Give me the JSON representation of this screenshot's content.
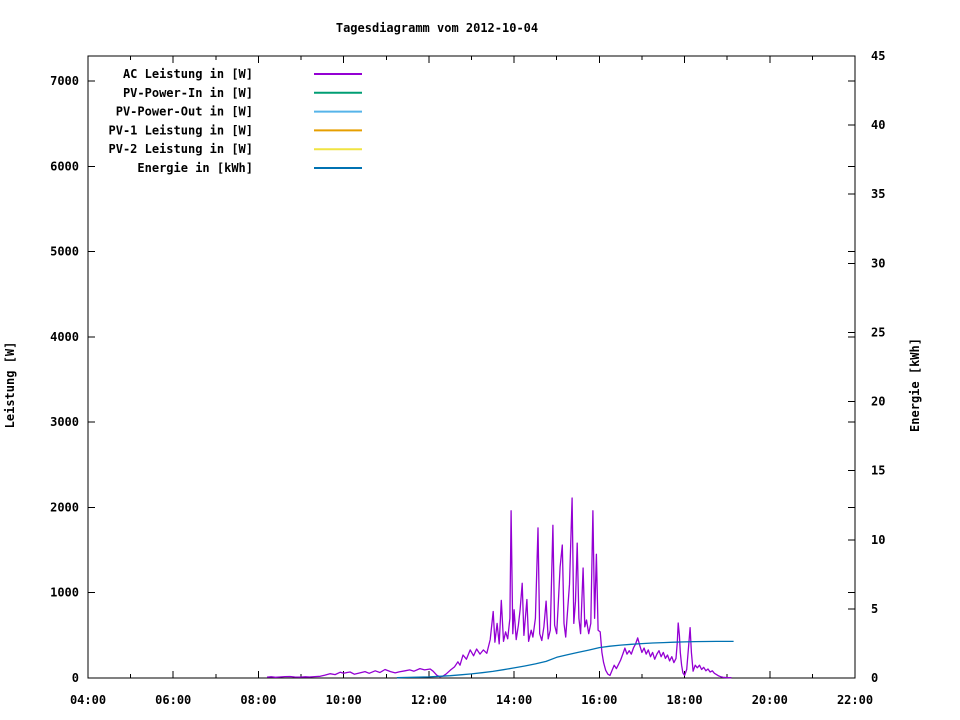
{
  "chart": {
    "title": "Tagesdiagramm vom 2012-10-04",
    "ylabel": "Leistung [W]",
    "y2label": "Energie [kWh]",
    "background_color": "#ffffff",
    "axis_color": "#000000"
  },
  "chart_data": {
    "type": "line",
    "title": "Tagesdiagramm vom 2012-10-04",
    "grid": false,
    "legend_position": "top-left-inside",
    "x_axis": {
      "unit": "time-of-day",
      "range_hours": [
        4,
        22
      ],
      "major_tick_every_hours": 2,
      "minor_tick_every_hours": 1,
      "tick_labels": [
        "04:00",
        "06:00",
        "08:00",
        "10:00",
        "12:00",
        "14:00",
        "16:00",
        "18:00",
        "20:00",
        "22:00"
      ]
    },
    "y_axis": {
      "label": "Leistung [W]",
      "range": [
        0,
        7300
      ],
      "tick_values": [
        0,
        1000,
        2000,
        3000,
        4000,
        5000,
        6000,
        7000
      ]
    },
    "y2_axis": {
      "label": "Energie [kWh]",
      "range": [
        0,
        45
      ],
      "tick_values": [
        0,
        5,
        10,
        15,
        20,
        25,
        30,
        35,
        40,
        45
      ]
    },
    "legend": [
      {
        "label": "AC Leistung in [W]",
        "color": "#9400d3"
      },
      {
        "label": "PV-Power-In in [W]",
        "color": "#009e73"
      },
      {
        "label": "PV-Power-Out in [W]",
        "color": "#56b4e9"
      },
      {
        "label": "PV-1 Leistung in [W]",
        "color": "#e69f00"
      },
      {
        "label": "PV-2 Leistung in [W]",
        "color": "#f0e442"
      },
      {
        "label": "Energie in [kWh]",
        "color": "#0072b2"
      }
    ],
    "series": [
      {
        "name": "AC Leistung in [W]",
        "key": "ac-leistung",
        "color": "#9400d3",
        "axis": "y1",
        "points": [
          [
            8.2,
            10
          ],
          [
            8.3,
            14
          ],
          [
            8.4,
            8
          ],
          [
            8.5,
            12
          ],
          [
            8.62,
            16
          ],
          [
            8.74,
            18
          ],
          [
            8.85,
            12
          ],
          [
            8.98,
            10
          ],
          [
            9.1,
            14
          ],
          [
            9.2,
            12
          ],
          [
            9.32,
            16
          ],
          [
            9.45,
            20
          ],
          [
            9.55,
            32
          ],
          [
            9.68,
            50
          ],
          [
            9.8,
            40
          ],
          [
            9.92,
            68
          ],
          [
            10.0,
            55
          ],
          [
            10.08,
            65
          ],
          [
            10.15,
            70
          ],
          [
            10.25,
            45
          ],
          [
            10.38,
            60
          ],
          [
            10.5,
            75
          ],
          [
            10.6,
            55
          ],
          [
            10.74,
            85
          ],
          [
            10.85,
            65
          ],
          [
            10.97,
            100
          ],
          [
            11.1,
            75
          ],
          [
            11.21,
            60
          ],
          [
            11.3,
            72
          ],
          [
            11.44,
            85
          ],
          [
            11.55,
            95
          ],
          [
            11.65,
            80
          ],
          [
            11.79,
            110
          ],
          [
            11.9,
            95
          ],
          [
            12.03,
            105
          ],
          [
            12.1,
            80
          ],
          [
            12.19,
            30
          ],
          [
            12.26,
            14
          ],
          [
            12.33,
            22
          ],
          [
            12.4,
            45
          ],
          [
            12.5,
            90
          ],
          [
            12.6,
            130
          ],
          [
            12.68,
            190
          ],
          [
            12.73,
            150
          ],
          [
            12.8,
            270
          ],
          [
            12.88,
            220
          ],
          [
            12.97,
            330
          ],
          [
            13.05,
            260
          ],
          [
            13.12,
            340
          ],
          [
            13.2,
            280
          ],
          [
            13.28,
            330
          ],
          [
            13.36,
            290
          ],
          [
            13.44,
            450
          ],
          [
            13.51,
            780
          ],
          [
            13.55,
            420
          ],
          [
            13.6,
            640
          ],
          [
            13.65,
            400
          ],
          [
            13.7,
            910
          ],
          [
            13.75,
            430
          ],
          [
            13.8,
            540
          ],
          [
            13.85,
            460
          ],
          [
            13.9,
            700
          ],
          [
            13.93,
            1960
          ],
          [
            13.97,
            520
          ],
          [
            14.0,
            800
          ],
          [
            14.05,
            450
          ],
          [
            14.1,
            620
          ],
          [
            14.14,
            800
          ],
          [
            14.19,
            1110
          ],
          [
            14.23,
            500
          ],
          [
            14.3,
            920
          ],
          [
            14.34,
            430
          ],
          [
            14.4,
            560
          ],
          [
            14.44,
            480
          ],
          [
            14.5,
            700
          ],
          [
            14.56,
            1760
          ],
          [
            14.6,
            520
          ],
          [
            14.65,
            440
          ],
          [
            14.7,
            600
          ],
          [
            14.75,
            900
          ],
          [
            14.8,
            460
          ],
          [
            14.85,
            560
          ],
          [
            14.91,
            1790
          ],
          [
            14.95,
            620
          ],
          [
            15.0,
            520
          ],
          [
            15.04,
            900
          ],
          [
            15.08,
            1300
          ],
          [
            15.13,
            1560
          ],
          [
            15.17,
            640
          ],
          [
            15.21,
            480
          ],
          [
            15.25,
            760
          ],
          [
            15.3,
            1100
          ],
          [
            15.36,
            2110
          ],
          [
            15.4,
            640
          ],
          [
            15.44,
            900
          ],
          [
            15.48,
            1580
          ],
          [
            15.52,
            700
          ],
          [
            15.56,
            520
          ],
          [
            15.62,
            1290
          ],
          [
            15.66,
            600
          ],
          [
            15.7,
            680
          ],
          [
            15.75,
            520
          ],
          [
            15.8,
            640
          ],
          [
            15.85,
            1960
          ],
          [
            15.89,
            700
          ],
          [
            15.93,
            1450
          ],
          [
            15.97,
            560
          ],
          [
            16.02,
            540
          ],
          [
            16.06,
            300
          ],
          [
            16.1,
            180
          ],
          [
            16.15,
            90
          ],
          [
            16.2,
            45
          ],
          [
            16.25,
            30
          ],
          [
            16.3,
            90
          ],
          [
            16.35,
            150
          ],
          [
            16.4,
            110
          ],
          [
            16.45,
            160
          ],
          [
            16.5,
            210
          ],
          [
            16.55,
            280
          ],
          [
            16.6,
            350
          ],
          [
            16.65,
            280
          ],
          [
            16.7,
            320
          ],
          [
            16.75,
            280
          ],
          [
            16.8,
            350
          ],
          [
            16.85,
            400
          ],
          [
            16.9,
            470
          ],
          [
            16.95,
            380
          ],
          [
            17.0,
            300
          ],
          [
            17.05,
            350
          ],
          [
            17.1,
            280
          ],
          [
            17.15,
            330
          ],
          [
            17.2,
            250
          ],
          [
            17.25,
            300
          ],
          [
            17.3,
            220
          ],
          [
            17.35,
            280
          ],
          [
            17.4,
            320
          ],
          [
            17.45,
            250
          ],
          [
            17.5,
            300
          ],
          [
            17.55,
            230
          ],
          [
            17.6,
            270
          ],
          [
            17.65,
            200
          ],
          [
            17.7,
            250
          ],
          [
            17.75,
            180
          ],
          [
            17.8,
            230
          ],
          [
            17.83,
            420
          ],
          [
            17.85,
            645
          ],
          [
            17.88,
            500
          ],
          [
            17.9,
            300
          ],
          [
            17.93,
            150
          ],
          [
            17.96,
            60
          ],
          [
            18.0,
            30
          ],
          [
            18.05,
            100
          ],
          [
            18.1,
            400
          ],
          [
            18.13,
            590
          ],
          [
            18.16,
            300
          ],
          [
            18.2,
            80
          ],
          [
            18.25,
            150
          ],
          [
            18.3,
            120
          ],
          [
            18.35,
            150
          ],
          [
            18.4,
            100
          ],
          [
            18.45,
            125
          ],
          [
            18.5,
            85
          ],
          [
            18.55,
            105
          ],
          [
            18.6,
            70
          ],
          [
            18.65,
            85
          ],
          [
            18.7,
            55
          ],
          [
            18.75,
            40
          ],
          [
            18.8,
            25
          ],
          [
            18.85,
            15
          ],
          [
            18.9,
            8
          ],
          [
            19.0,
            5
          ],
          [
            19.1,
            3
          ]
        ]
      },
      {
        "name": "PV-Power-In in [W]",
        "key": "pv-power-in",
        "color": "#009e73",
        "axis": "y1",
        "points": []
      },
      {
        "name": "PV-Power-Out in [W]",
        "key": "pv-power-out",
        "color": "#56b4e9",
        "axis": "y1",
        "points": []
      },
      {
        "name": "PV-1 Leistung in [W]",
        "key": "pv-1-leistung",
        "color": "#e69f00",
        "axis": "y1",
        "points": []
      },
      {
        "name": "PV-2 Leistung in [W]",
        "key": "pv-2-leistung",
        "color": "#f0e442",
        "axis": "y1",
        "points": []
      },
      {
        "name": "Energie in [kWh]",
        "key": "energie",
        "color": "#0072b2",
        "axis": "y2",
        "points": [
          [
            11.25,
            0.02
          ],
          [
            11.5,
            0.04
          ],
          [
            11.75,
            0.06
          ],
          [
            12.0,
            0.08
          ],
          [
            12.25,
            0.12
          ],
          [
            12.5,
            0.17
          ],
          [
            12.75,
            0.23
          ],
          [
            13.0,
            0.3
          ],
          [
            13.25,
            0.38
          ],
          [
            13.5,
            0.48
          ],
          [
            13.75,
            0.6
          ],
          [
            14.0,
            0.73
          ],
          [
            14.25,
            0.87
          ],
          [
            14.5,
            1.02
          ],
          [
            14.75,
            1.2
          ],
          [
            15.0,
            1.5
          ],
          [
            15.25,
            1.68
          ],
          [
            15.5,
            1.85
          ],
          [
            15.75,
            2.02
          ],
          [
            16.0,
            2.2
          ],
          [
            16.25,
            2.3
          ],
          [
            16.5,
            2.38
          ],
          [
            16.75,
            2.44
          ],
          [
            17.0,
            2.49
          ],
          [
            17.25,
            2.53
          ],
          [
            17.5,
            2.56
          ],
          [
            17.75,
            2.59
          ],
          [
            18.0,
            2.61
          ],
          [
            18.25,
            2.63
          ],
          [
            18.5,
            2.64
          ],
          [
            18.75,
            2.65
          ],
          [
            19.0,
            2.65
          ],
          [
            19.15,
            2.65
          ]
        ]
      }
    ]
  }
}
